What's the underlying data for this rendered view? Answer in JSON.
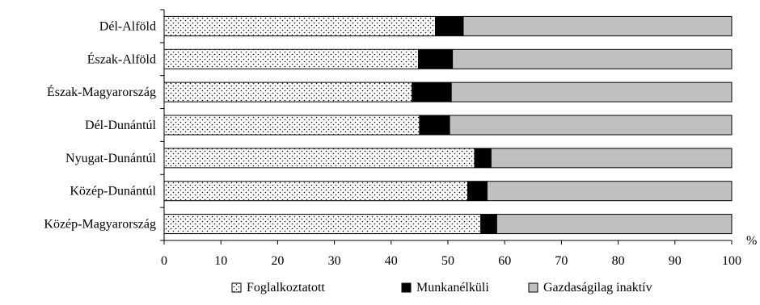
{
  "chart_data": {
    "type": "bar",
    "orientation": "horizontal",
    "stacked": true,
    "unit_label": "%",
    "categories": [
      "Dél-Alföld",
      "Észak-Alföld",
      "Észak-Magyarország",
      "Dél-Dunántúl",
      "Nyugat-Dunántúl",
      "Közép-Dunántúl",
      "Közép-Magyarország"
    ],
    "series": [
      {
        "name": "Foglalkoztatott",
        "values": [
          47.8,
          44.8,
          43.7,
          45.0,
          54.7,
          53.5,
          55.8
        ],
        "color": "#ffffff",
        "pattern": "dots"
      },
      {
        "name": "Munkanélküli",
        "values": [
          4.9,
          6.0,
          6.9,
          5.3,
          2.9,
          3.4,
          2.8
        ],
        "color": "#000000"
      },
      {
        "name": "Gazdaságilag inaktív",
        "values": [
          47.3,
          49.2,
          49.4,
          49.7,
          42.4,
          43.1,
          41.4
        ],
        "color": "#c0c0c0"
      }
    ],
    "xlim": [
      0,
      100
    ],
    "xticks": [
      "0",
      "10",
      "20",
      "30",
      "40",
      "50",
      "60",
      "70",
      "80",
      "90",
      "100"
    ],
    "grid": false,
    "legend_position": "bottom"
  }
}
